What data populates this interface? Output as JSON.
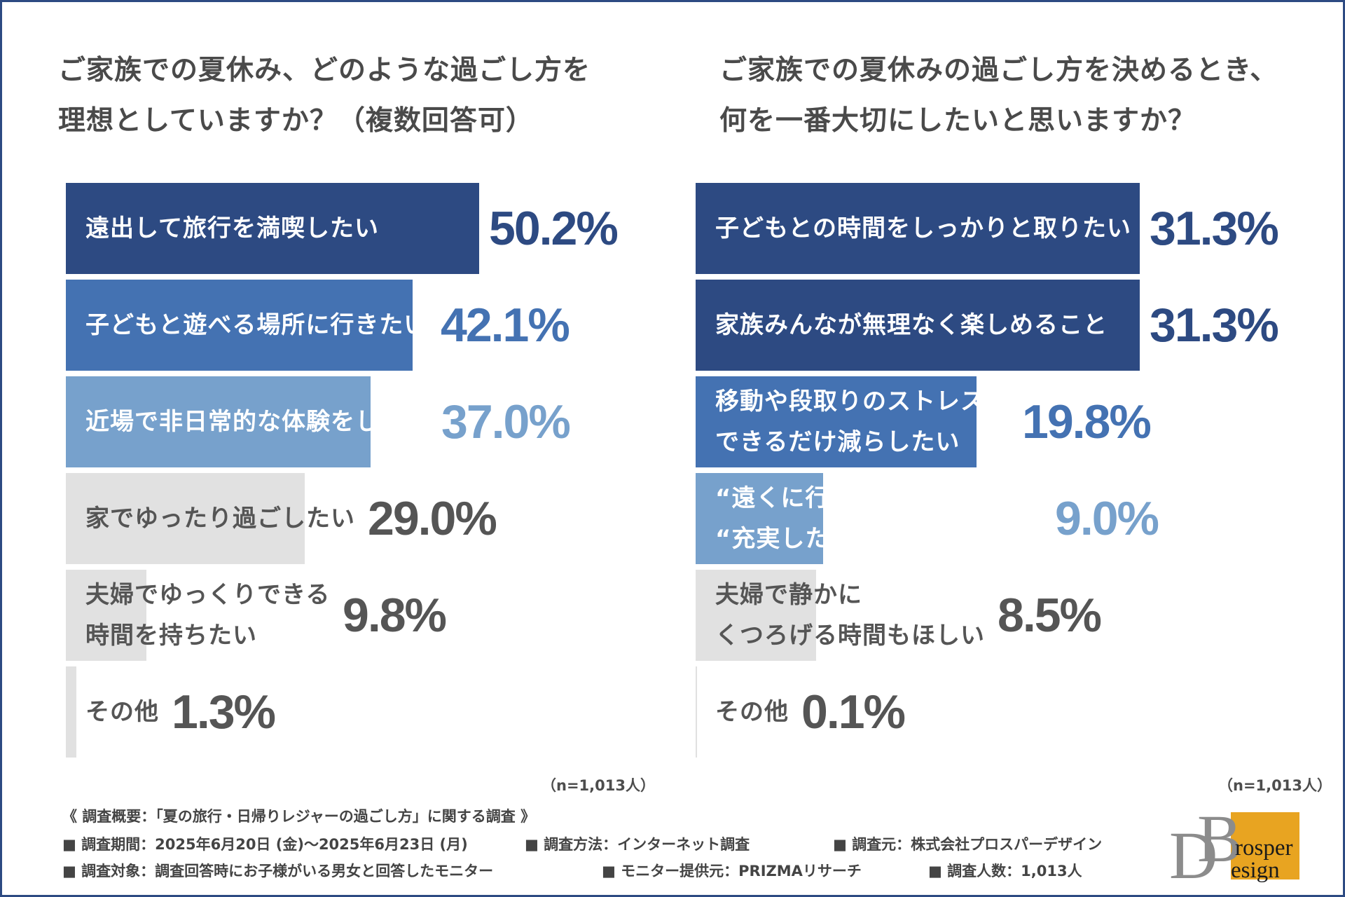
{
  "colors": {
    "dark": "#2d4a82",
    "mid": "#4472b2",
    "light": "#77a1cc",
    "gray": "#e1e1e1",
    "grayText": "#555555"
  },
  "chart_data": [
    {
      "type": "bar",
      "title": "ご家族での夏休み、どのような過ごし方を理想としていますか？（複数回答可）",
      "title_lines": [
        "ご家族での夏休み、どのような過ごし方を",
        "理想としていますか？（複数回答可）"
      ],
      "categories": [
        "遠出して旅行を満喫したい",
        "子どもと遊べる場所に行きたい",
        "近場で非日常的な体験をしたい",
        "家でゆったり過ごしたい",
        "夫婦でゆっくりできる時間を持ちたい",
        "その他"
      ],
      "category_lines": [
        [
          "遠出して旅行を満喫したい"
        ],
        [
          "子どもと遊べる場所に行きたい"
        ],
        [
          "近場で非日常的な体験をしたい"
        ],
        [
          "家でゆったり過ごしたい"
        ],
        [
          "夫婦でゆっくりできる",
          "時間を持ちたい"
        ],
        [
          "その他"
        ]
      ],
      "values": [
        50.2,
        42.1,
        37.0,
        29.0,
        9.8,
        1.3
      ],
      "value_labels": [
        "50.2%",
        "42.1%",
        "37.0%",
        "29.0%",
        "9.8%",
        "1.3%"
      ],
      "color_keys": [
        "dark",
        "mid",
        "light",
        "gray",
        "gray",
        "gray"
      ],
      "xlim": [
        0,
        50.2
      ],
      "note": "（n=1,013人）"
    },
    {
      "type": "bar",
      "title": "ご家族での夏休みの過ごし方を決めるとき、何を一番大切にしたいと思いますか？",
      "title_lines": [
        "ご家族での夏休みの過ごし方を決めるとき、",
        "何を一番大切にしたいと思いますか？"
      ],
      "categories": [
        "子どもとの時間をしっかりと取りたい",
        "家族みんなが無理なく楽しめること",
        "移動や段取りのストレスをできるだけ減らしたい",
        "“遠くに行くこと”より“充実した時間”を重視したい",
        "夫婦で静かにくつろげる時間もほしい",
        "その他"
      ],
      "category_lines": [
        [
          "子どもとの時間をしっかりと取りたい"
        ],
        [
          "家族みんなが無理なく楽しめること"
        ],
        [
          "移動や段取りのストレスを",
          "できるだけ減らしたい"
        ],
        [
          "“遠くに行くこと”より",
          "“充実した時間”を重視したい"
        ],
        [
          "夫婦で静かに",
          "くつろげる時間もほしい"
        ],
        [
          "その他"
        ]
      ],
      "values": [
        31.3,
        31.3,
        19.8,
        9.0,
        8.5,
        0.1
      ],
      "value_labels": [
        "31.3%",
        "31.3%",
        "19.8%",
        "9.0%",
        "8.5%",
        "0.1%"
      ],
      "color_keys": [
        "dark",
        "dark",
        "mid",
        "light",
        "gray",
        "gray"
      ],
      "xlim": [
        0,
        31.3
      ],
      "note": "（n=1,013人）"
    }
  ],
  "footer": {
    "heading": "《 調査概要：「夏の旅行・日帰りレジャーの過ごし方」に関する調査 》",
    "items": [
      "■ 調査期間：2025年6月20日 (金)〜2025年6月23日 (月)",
      "■ 調査方法：インターネット調査",
      "■ 調査元：株式会社プロスパーデザイン",
      "■ 調査対象：調査回答時にお子様がいる男女と回答したモニター",
      "■ モニター提供元：PRIZMAリサーチ",
      "■ 調査人数：1,013人"
    ]
  },
  "logo": {
    "letter_top": "B",
    "letter_bottom": "D",
    "word_top": "rosper",
    "word_bottom": "esign"
  }
}
